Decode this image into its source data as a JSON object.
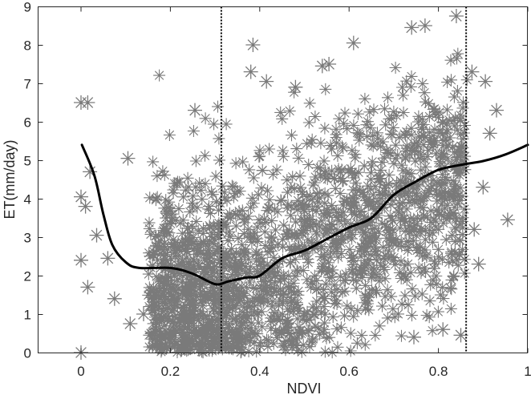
{
  "chart_data": {
    "type": "scatter",
    "title": "",
    "xlabel": "NDVI",
    "ylabel": "ET(mm/day)",
    "xlim": [
      -0.1,
      1.0
    ],
    "ylim": [
      0,
      9
    ],
    "xticks": [
      0,
      0.2,
      0.4,
      0.6,
      0.8,
      1
    ],
    "xtick_labels": [
      "0",
      "0.2",
      "0.4",
      "0.6",
      "0.8",
      "1"
    ],
    "yticks": [
      0,
      1,
      2,
      3,
      4,
      5,
      6,
      7,
      8,
      9
    ],
    "ytick_labels": [
      "0",
      "1",
      "2",
      "3",
      "4",
      "5",
      "6",
      "7",
      "8",
      "9"
    ],
    "grid": false,
    "legend": null,
    "marker": "asterisk",
    "marker_color": "#7a7a7a",
    "vertical_lines": [
      {
        "x": 0.314,
        "style": "dotted",
        "color": "#000000"
      },
      {
        "x": 0.862,
        "style": "dotted",
        "color": "#000000"
      }
    ],
    "series": [
      {
        "name": "observations",
        "type": "scatter",
        "description": "Dense cloud of ET vs NDVI points; most concentrated between NDVI 0.15-0.86, ET increasing with NDVI",
        "highlighted_points": [
          {
            "x": 0.0,
            "y": 6.5
          },
          {
            "x": 0.015,
            "y": 6.5
          },
          {
            "x": 0.0,
            "y": 4.05
          },
          {
            "x": 0.01,
            "y": 3.8
          },
          {
            "x": 0.02,
            "y": 4.7
          },
          {
            "x": 0.035,
            "y": 3.05
          },
          {
            "x": 0.0,
            "y": 2.4
          },
          {
            "x": 0.015,
            "y": 1.7
          },
          {
            "x": 0.06,
            "y": 2.45
          },
          {
            "x": 0.075,
            "y": 1.4
          },
          {
            "x": 0.0,
            "y": 0.0
          },
          {
            "x": 0.11,
            "y": 0.75
          },
          {
            "x": 0.105,
            "y": 5.05
          },
          {
            "x": 0.14,
            "y": 1.0
          },
          {
            "x": 0.255,
            "y": 6.3
          },
          {
            "x": 0.385,
            "y": 8.0
          },
          {
            "x": 0.38,
            "y": 7.3
          },
          {
            "x": 0.415,
            "y": 7.05
          },
          {
            "x": 0.48,
            "y": 6.9
          },
          {
            "x": 0.54,
            "y": 7.45
          },
          {
            "x": 0.555,
            "y": 7.5
          },
          {
            "x": 0.61,
            "y": 8.05
          },
          {
            "x": 0.74,
            "y": 8.45
          },
          {
            "x": 0.77,
            "y": 8.5
          },
          {
            "x": 0.84,
            "y": 8.75
          },
          {
            "x": 0.875,
            "y": 7.3
          },
          {
            "x": 0.905,
            "y": 7.05
          },
          {
            "x": 0.93,
            "y": 6.3
          },
          {
            "x": 0.915,
            "y": 5.7
          },
          {
            "x": 0.955,
            "y": 3.45
          },
          {
            "x": 0.9,
            "y": 4.3
          },
          {
            "x": 0.88,
            "y": 3.2
          },
          {
            "x": 0.89,
            "y": 2.3
          },
          {
            "x": 0.85,
            "y": 0.45
          },
          {
            "x": 0.81,
            "y": 0.6
          },
          {
            "x": 0.745,
            "y": 0.4
          }
        ]
      },
      {
        "name": "smoothed fit",
        "type": "line",
        "color": "#000000",
        "x": [
          0.002,
          0.03,
          0.05,
          0.07,
          0.1,
          0.13,
          0.2,
          0.25,
          0.3,
          0.33,
          0.37,
          0.4,
          0.45,
          0.5,
          0.55,
          0.6,
          0.65,
          0.7,
          0.75,
          0.8,
          0.85,
          0.9,
          0.95,
          1.0
        ],
        "y": [
          5.4,
          4.6,
          3.6,
          2.8,
          2.35,
          2.2,
          2.2,
          2.05,
          1.78,
          1.85,
          1.95,
          2.0,
          2.45,
          2.65,
          2.95,
          3.25,
          3.5,
          4.1,
          4.45,
          4.75,
          4.88,
          4.98,
          5.15,
          5.4
        ]
      }
    ]
  }
}
